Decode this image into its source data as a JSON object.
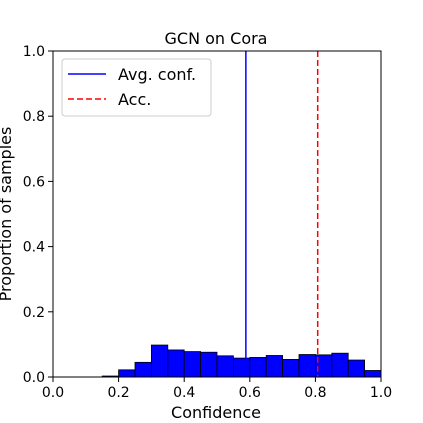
{
  "chart_data": {
    "type": "bar",
    "title": "GCN on Cora",
    "xlabel": "Confidence",
    "ylabel": "Proportion of samples",
    "xlim": [
      0.0,
      1.0
    ],
    "ylim": [
      0.0,
      1.0
    ],
    "xticks": [
      "0.0",
      "0.2",
      "0.4",
      "0.6",
      "0.8",
      "1.0"
    ],
    "yticks": [
      "0.0",
      "0.2",
      "0.4",
      "0.6",
      "0.8",
      "1.0"
    ],
    "bin_width": 0.05,
    "bins": [
      {
        "x0": 0.15,
        "value": 0.003
      },
      {
        "x0": 0.2,
        "value": 0.022
      },
      {
        "x0": 0.25,
        "value": 0.045
      },
      {
        "x0": 0.3,
        "value": 0.098
      },
      {
        "x0": 0.35,
        "value": 0.083
      },
      {
        "x0": 0.4,
        "value": 0.078
      },
      {
        "x0": 0.45,
        "value": 0.076
      },
      {
        "x0": 0.5,
        "value": 0.065
      },
      {
        "x0": 0.55,
        "value": 0.058
      },
      {
        "x0": 0.6,
        "value": 0.06
      },
      {
        "x0": 0.65,
        "value": 0.066
      },
      {
        "x0": 0.7,
        "value": 0.054
      },
      {
        "x0": 0.75,
        "value": 0.069
      },
      {
        "x0": 0.8,
        "value": 0.068
      },
      {
        "x0": 0.85,
        "value": 0.073
      },
      {
        "x0": 0.9,
        "value": 0.052
      },
      {
        "x0": 0.95,
        "value": 0.02
      }
    ],
    "bar_color": "#0000ff",
    "vlines": [
      {
        "name": "Avg. conf.",
        "x": 0.588,
        "color": "#0000ff",
        "style": "solid"
      },
      {
        "name": "Acc.",
        "x": 0.807,
        "color": "#ff0000",
        "style": "dashed"
      }
    ],
    "legend": {
      "position": "upper-left",
      "entries": [
        "Avg. conf.",
        "Acc."
      ]
    },
    "grid": false
  }
}
